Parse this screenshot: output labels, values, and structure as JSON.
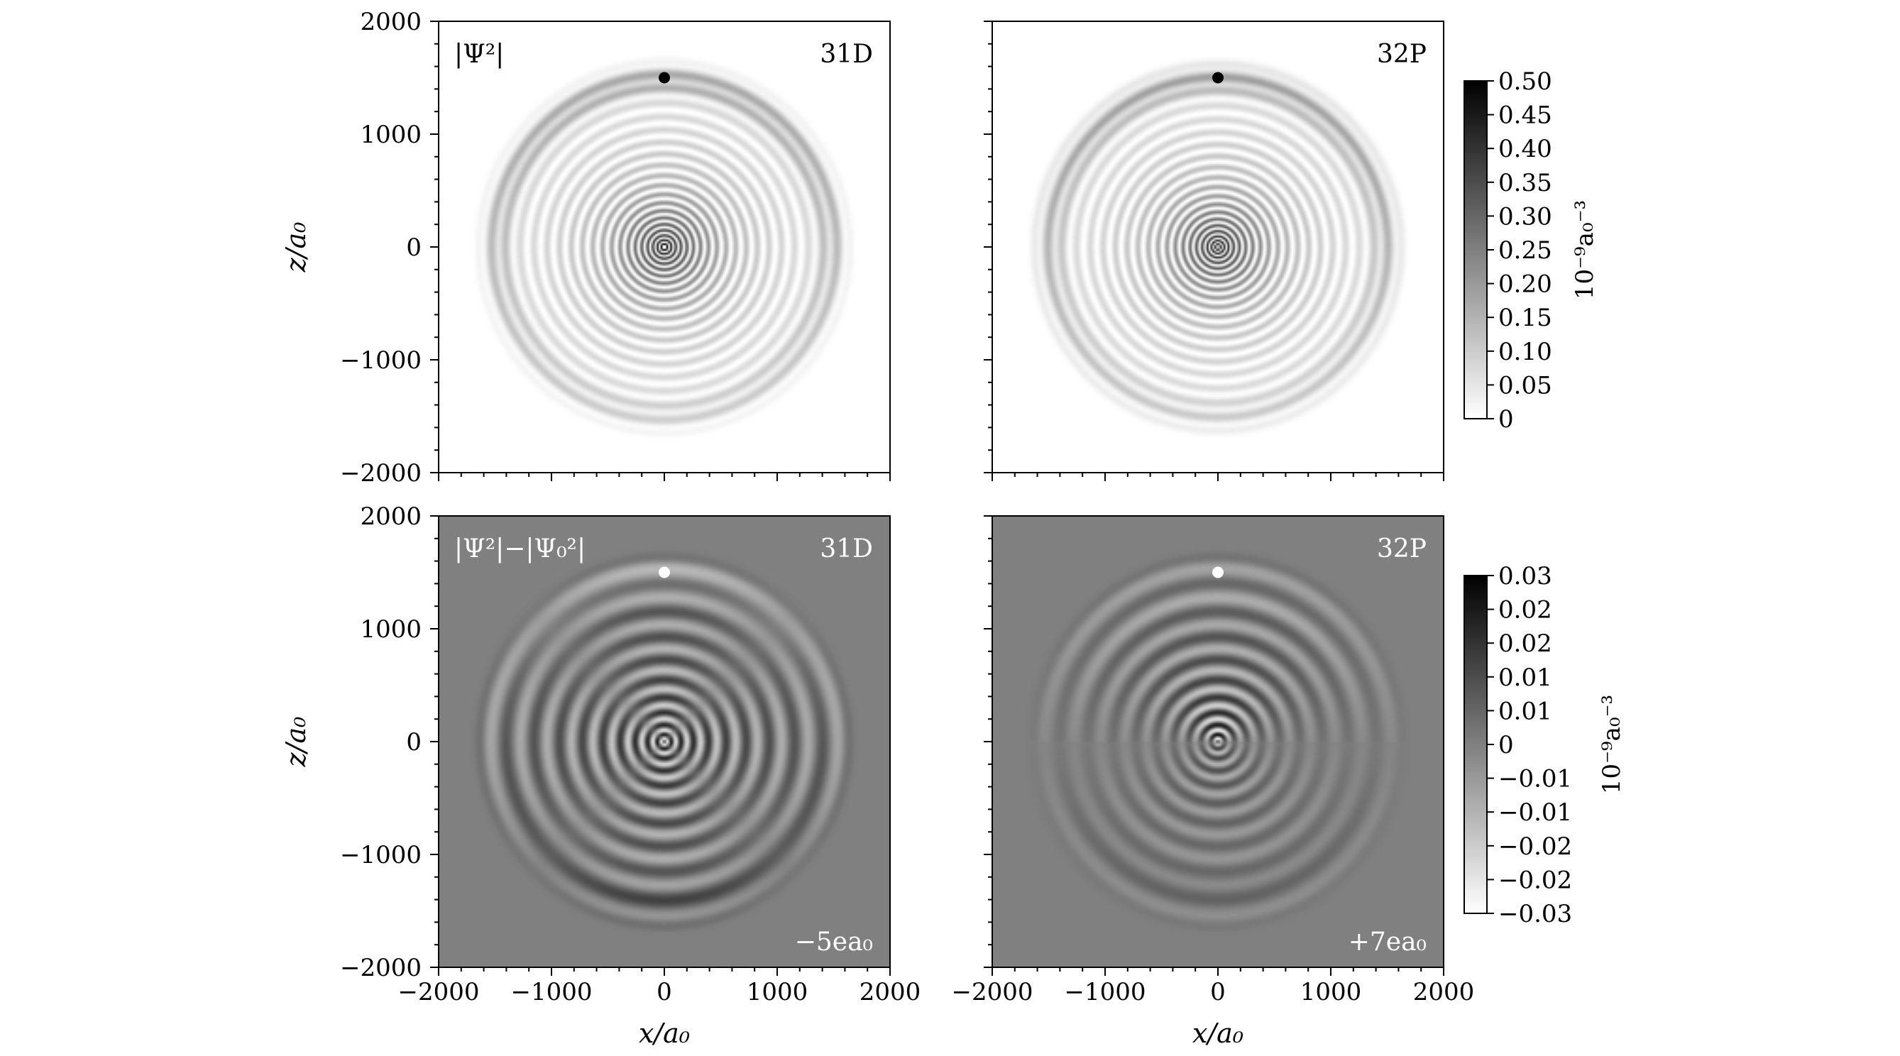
{
  "chart_data": [
    {
      "type": "heatmap",
      "panel": "top-left",
      "quantity_label": "|Ψ²|",
      "state_label": "31D",
      "field_label": "",
      "xlabel": "",
      "ylabel": "z/a₀",
      "xlim": [
        -2000,
        2000
      ],
      "ylim": [
        -2000,
        2000
      ],
      "xticks": [],
      "yticks": [
        "2000",
        "1000",
        "0",
        "−1000",
        "−2000"
      ],
      "marker": {
        "x": 0,
        "z": 1500,
        "color": "#000000"
      },
      "colorbar": "top",
      "variant": "density31D"
    },
    {
      "type": "heatmap",
      "panel": "top-right",
      "quantity_label": "",
      "state_label": "32P",
      "field_label": "",
      "xlabel": "",
      "ylabel": "",
      "xlim": [
        -2000,
        2000
      ],
      "ylim": [
        -2000,
        2000
      ],
      "xticks": [],
      "yticks": [],
      "marker": {
        "x": 0,
        "z": 1500,
        "color": "#000000"
      },
      "colorbar": "top",
      "variant": "density32P"
    },
    {
      "type": "heatmap",
      "panel": "bottom-left",
      "quantity_label": "|Ψ²|−|Ψ₀²|",
      "state_label": "31D",
      "field_label": "−5ea₀",
      "xlabel": "x/a₀",
      "ylabel": "z/a₀",
      "xlim": [
        -2000,
        2000
      ],
      "ylim": [
        -2000,
        2000
      ],
      "xticks": [
        "−2000",
        "−1000",
        "0",
        "1000",
        "2000"
      ],
      "yticks": [
        "2000",
        "1000",
        "0",
        "−1000",
        "−2000"
      ],
      "marker": {
        "x": 0,
        "z": 1500,
        "color": "#ffffff"
      },
      "colorbar": "bottom",
      "variant": "diff31D"
    },
    {
      "type": "heatmap",
      "panel": "bottom-right",
      "quantity_label": "",
      "state_label": "32P",
      "field_label": "+7ea₀",
      "xlabel": "x/a₀",
      "ylabel": "",
      "xlim": [
        -2000,
        2000
      ],
      "ylim": [
        -2000,
        2000
      ],
      "xticks": [
        "−2000",
        "−1000",
        "0",
        "1000",
        "2000"
      ],
      "yticks": [],
      "marker": {
        "x": 0,
        "z": 1500,
        "color": "#ffffff"
      },
      "colorbar": "bottom",
      "variant": "diff32P"
    }
  ],
  "colorbars": {
    "top": {
      "label": "10⁻⁹a₀⁻³",
      "range": [
        0,
        0.5
      ],
      "colormap": "gray_r",
      "ticks": [
        "0.50",
        "0.45",
        "0.40",
        "0.35",
        "0.30",
        "0.25",
        "0.20",
        "0.15",
        "0.10",
        "0.05",
        "0"
      ]
    },
    "bottom": {
      "label": "10⁻⁹a₀⁻³",
      "range": [
        -0.03,
        0.03
      ],
      "colormap": "gray_r",
      "ticks": [
        "0.03",
        "0.02",
        "0.02",
        "0.01",
        "0.01",
        "0",
        "−0.01",
        "−0.01",
        "−0.02",
        "−0.02",
        "−0.03"
      ]
    }
  }
}
